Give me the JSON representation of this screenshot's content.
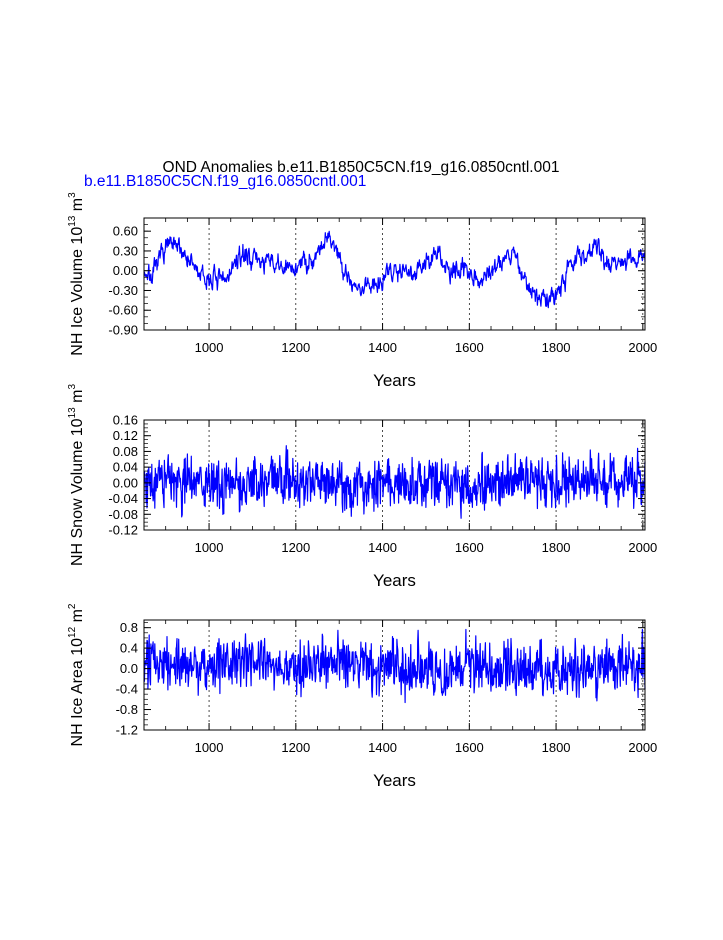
{
  "title": "OND Anomalies b.e11.B1850C5CN.f19_g16.0850cntl.001",
  "case_label": "b.e11.B1850C5CN.f19_g16.0850cntl.001",
  "colors": {
    "series": "#0000ff",
    "axes": "#000000"
  },
  "chart_data": [
    {
      "type": "line",
      "name": "ice-volume",
      "ylabel": {
        "main": "NH Ice Volume 10",
        "exp": "13",
        "unit": " m",
        "unit_exp": "3"
      },
      "xlabel": "Years",
      "xlim": [
        850,
        2005
      ],
      "ylim": [
        -0.9,
        0.8
      ],
      "xticks": [
        1000,
        1200,
        1400,
        1600,
        1800,
        2000
      ],
      "yticks": [
        0.6,
        0.3,
        0.0,
        -0.3,
        -0.6,
        -0.9
      ],
      "ytick_labels": [
        "0.60",
        "0.30",
        "0.00",
        "-0.30",
        "-0.60",
        "-0.90"
      ],
      "minor_y_step": 0.1,
      "grid_x_dashed": true,
      "anchors_x": [
        850,
        870,
        900,
        940,
        960,
        990,
        1010,
        1030,
        1060,
        1080,
        1120,
        1150,
        1180,
        1210,
        1240,
        1270,
        1290,
        1310,
        1340,
        1360,
        1400,
        1440,
        1470,
        1500,
        1530,
        1560,
        1590,
        1620,
        1650,
        1680,
        1700,
        1720,
        1740,
        1760,
        1780,
        1800,
        1830,
        1860,
        1890,
        1920,
        1950,
        1980,
        2000,
        2005
      ],
      "anchors_y": [
        0.0,
        -0.1,
        0.4,
        0.3,
        0.1,
        -0.15,
        -0.1,
        -0.2,
        0.1,
        0.25,
        0.15,
        0.1,
        0.0,
        0.1,
        0.2,
        0.5,
        0.4,
        0.05,
        -0.3,
        -0.25,
        -0.1,
        0.05,
        0.0,
        0.1,
        0.25,
        -0.1,
        0.1,
        -0.15,
        0.0,
        0.2,
        0.3,
        0.0,
        -0.35,
        -0.4,
        -0.45,
        -0.35,
        0.1,
        0.2,
        0.4,
        0.1,
        0.2,
        0.1,
        0.25,
        0.15
      ],
      "noise_amplitude": 0.18,
      "smoothing": 0.55,
      "seed": 7
    },
    {
      "type": "line",
      "name": "snow-volume",
      "ylabel": {
        "main": "NH Snow Volume 10",
        "exp": "13",
        "unit": " m",
        "unit_exp": "3"
      },
      "xlabel": "Years",
      "xlim": [
        850,
        2005
      ],
      "ylim": [
        -0.12,
        0.16
      ],
      "xticks": [
        1000,
        1200,
        1400,
        1600,
        1800,
        2000
      ],
      "yticks": [
        0.16,
        0.12,
        0.08,
        0.04,
        0.0,
        -0.04,
        -0.08,
        -0.12
      ],
      "ytick_labels": [
        "0.16",
        "0.12",
        "0.08",
        "0.04",
        "0.00",
        "-0.04",
        "-0.08",
        "-0.12"
      ],
      "minor_y_step": 0.01,
      "grid_x_dashed": true,
      "anchors_x": [
        850,
        900,
        1000,
        1100,
        1200,
        1300,
        1400,
        1500,
        1600,
        1700,
        1800,
        1900,
        2005
      ],
      "anchors_y": [
        0.0,
        0.01,
        -0.01,
        0.0,
        0.01,
        0.0,
        -0.005,
        0.0,
        -0.01,
        0.005,
        0.0,
        0.005,
        0.0
      ],
      "noise_amplitude": 0.05,
      "smoothing": 0.2,
      "seed": 19
    },
    {
      "type": "line",
      "name": "ice-area",
      "ylabel": {
        "main": "NH Ice Area 10",
        "exp": "12",
        "unit": " m",
        "unit_exp": "2"
      },
      "xlabel": "Years",
      "xlim": [
        850,
        2005
      ],
      "ylim": [
        -1.2,
        0.95
      ],
      "xticks": [
        1000,
        1200,
        1400,
        1600,
        1800,
        2000
      ],
      "yticks": [
        0.8,
        0.4,
        0.0,
        -0.4,
        -0.8,
        -1.2
      ],
      "ytick_labels": [
        "0.8",
        "0.4",
        "0.0",
        "-0.4",
        "-0.8",
        "-1.2"
      ],
      "minor_y_step": 0.1,
      "grid_x_dashed": true,
      "anchors_x": [
        850,
        900,
        1000,
        1100,
        1200,
        1300,
        1400,
        1500,
        1600,
        1700,
        1800,
        1900,
        2005
      ],
      "anchors_y": [
        0.0,
        0.2,
        0.05,
        0.1,
        0.0,
        0.15,
        -0.05,
        0.0,
        0.0,
        0.05,
        -0.05,
        0.1,
        0.05
      ],
      "noise_amplitude": 0.42,
      "smoothing": 0.25,
      "seed": 31
    }
  ],
  "axis_labels": {
    "x0": "1000",
    "x1": "1200",
    "x2": "1400",
    "x3": "1600",
    "x4": "1800",
    "x5": "2000"
  }
}
